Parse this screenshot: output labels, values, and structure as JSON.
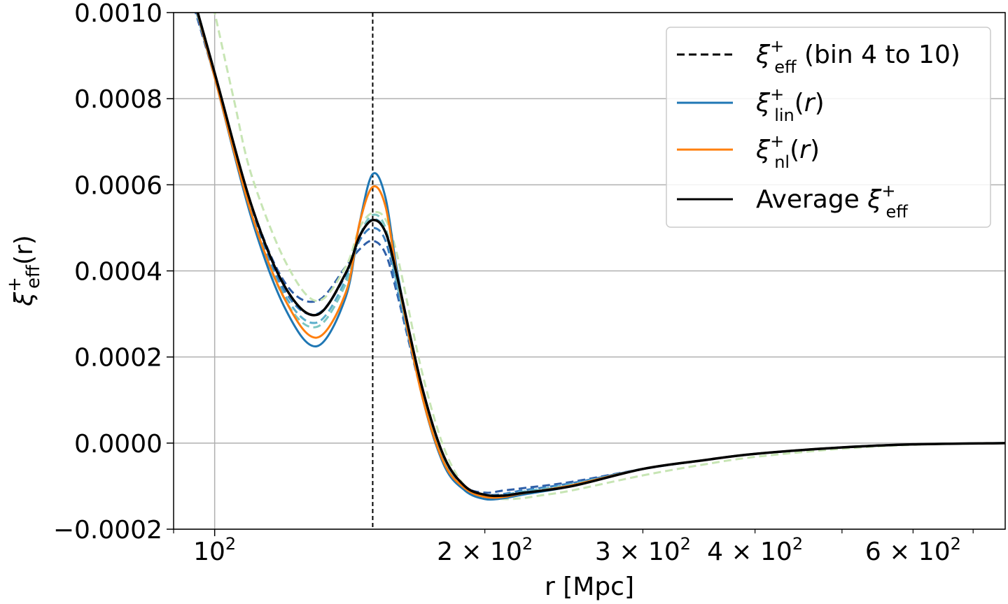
{
  "chart_data": {
    "type": "line",
    "xscale": "log",
    "xlim": [
      90,
      760
    ],
    "ylim": [
      -0.0002,
      0.001
    ],
    "xlabel": "r [Mpc]",
    "ylabel": {
      "base": "ξ",
      "sup": "+",
      "sub": "eff",
      "tail": "(r)"
    },
    "grid": true,
    "legend_position": "top-right",
    "vline": {
      "x": 150,
      "style": "dashed",
      "color": "#000000"
    },
    "x_ticks_major": [
      {
        "value": 100,
        "base": "10",
        "exp": "2"
      }
    ],
    "x_ticks_minor": [
      {
        "value": 200,
        "base": "2 × 10",
        "exp": "2"
      },
      {
        "value": 300,
        "base": "3 × 10",
        "exp": "2"
      },
      {
        "value": 400,
        "base": "4 × 10",
        "exp": "2"
      },
      {
        "value": 600,
        "base": "6 × 10",
        "exp": "2"
      }
    ],
    "y_ticks": [
      {
        "value": -0.0002,
        "label": "−0.0002"
      },
      {
        "value": 0.0,
        "label": "0.0000"
      },
      {
        "value": 0.0002,
        "label": "0.0002"
      },
      {
        "value": 0.0004,
        "label": "0.0004"
      },
      {
        "value": 0.0006,
        "label": "0.0006"
      },
      {
        "value": 0.0008,
        "label": "0.0008"
      },
      {
        "value": 0.001,
        "label": "0.0010"
      }
    ],
    "legend": [
      {
        "style": "dashed",
        "color": "#000000",
        "base": "ξ",
        "sup": "+",
        "sub": "eff",
        "tail": " (bin 4 to 10)"
      },
      {
        "style": "solid",
        "color": "#1f77b4",
        "base": "ξ",
        "sup": "+",
        "sub": "lin",
        "tail": "(r)"
      },
      {
        "style": "solid",
        "color": "#ff7f0e",
        "base": "ξ",
        "sup": "+",
        "sub": "nl",
        "tail": "(r)"
      },
      {
        "style": "solid",
        "color": "#000000",
        "base": "Average ξ",
        "sup": "+",
        "sub": "eff",
        "tail": ""
      }
    ],
    "series": [
      {
        "name": "lin",
        "kind": "main",
        "color": "#1f77b4",
        "dashed": false,
        "width": 3,
        "x": [
          94,
          100,
          110,
          120,
          130,
          140,
          145,
          150,
          155,
          160,
          170,
          180,
          190,
          200,
          210,
          220,
          250,
          300,
          350,
          400,
          500,
          600,
          760
        ],
        "y": [
          0.00106,
          0.00085,
          0.00052,
          0.00031,
          0.000225,
          0.00034,
          0.00051,
          0.000625,
          0.00057,
          0.00039,
          0.000115,
          -5e-05,
          -0.00011,
          -0.00013,
          -0.000128,
          -0.00012,
          -0.0001,
          -6e-05,
          -4e-05,
          -2.5e-05,
          -1e-05,
          -3e-06,
          0.0
        ]
      },
      {
        "name": "nl",
        "kind": "main",
        "color": "#ff7f0e",
        "dashed": false,
        "width": 3,
        "x": [
          94,
          100,
          110,
          120,
          130,
          140,
          145,
          150,
          155,
          160,
          170,
          180,
          190,
          200,
          210,
          220,
          250,
          300,
          350,
          400,
          500,
          600,
          760
        ],
        "y": [
          0.00106,
          0.00085,
          0.00053,
          0.00033,
          0.000245,
          0.00035,
          0.00051,
          0.000595,
          0.00055,
          0.00038,
          0.000115,
          -4.5e-05,
          -0.000105,
          -0.000125,
          -0.000125,
          -0.000117,
          -9.8e-05,
          -6e-05,
          -4e-05,
          -2.5e-05,
          -1e-05,
          -3e-06,
          0.0
        ]
      },
      {
        "name": "bin 4",
        "kind": "bin",
        "color": "#2f5fa8",
        "dashed": true,
        "width": 3,
        "x": [
          94,
          100,
          110,
          120,
          130,
          140,
          145,
          150,
          155,
          160,
          170,
          180,
          190,
          200,
          210,
          220,
          250,
          300,
          350,
          400,
          500,
          600,
          760
        ],
        "y": [
          0.00104,
          0.00085,
          0.00055,
          0.00037,
          0.00033,
          0.00041,
          0.00045,
          0.00047,
          0.00044,
          0.00034,
          0.00012,
          -3e-05,
          -0.0001,
          -0.000115,
          -0.00011,
          -0.000105,
          -9e-05,
          -6e-05,
          -4e-05,
          -2.5e-05,
          -1e-05,
          -3e-06,
          0.0
        ]
      },
      {
        "name": "bin 5",
        "kind": "bin",
        "color": "#3a7fbf",
        "dashed": true,
        "width": 3,
        "x": [
          94,
          100,
          110,
          120,
          130,
          140,
          145,
          150,
          155,
          160,
          170,
          180,
          190,
          200,
          210,
          220,
          250,
          300,
          350,
          400,
          500,
          600,
          760
        ],
        "y": [
          0.00105,
          0.00085,
          0.00054,
          0.00035,
          0.0003,
          0.00039,
          0.00047,
          0.0005,
          0.00047,
          0.00035,
          0.00012,
          -4e-05,
          -0.000105,
          -0.00012,
          -0.000118,
          -0.00011,
          -9.3e-05,
          -6e-05,
          -4e-05,
          -2.5e-05,
          -1e-05,
          -3e-06,
          0.0
        ]
      },
      {
        "name": "bin 6",
        "kind": "bin",
        "color": "#5aaecb",
        "dashed": true,
        "width": 3,
        "x": [
          94,
          100,
          110,
          120,
          130,
          140,
          145,
          150,
          155,
          160,
          170,
          180,
          190,
          200,
          210,
          220,
          250,
          300,
          350,
          400,
          500,
          600,
          760
        ],
        "y": [
          0.00105,
          0.00085,
          0.00053,
          0.00034,
          0.00028,
          0.00038,
          0.00048,
          0.00052,
          0.00049,
          0.00036,
          0.00012,
          -4e-05,
          -0.00011,
          -0.000125,
          -0.00012,
          -0.000113,
          -9.5e-05,
          -6e-05,
          -4e-05,
          -2.5e-05,
          -1e-05,
          -3e-06,
          0.0
        ]
      },
      {
        "name": "bin 7",
        "kind": "bin",
        "color": "#7cc6c2",
        "dashed": true,
        "width": 3,
        "x": [
          94,
          100,
          110,
          120,
          130,
          140,
          145,
          150,
          155,
          160,
          170,
          180,
          190,
          200,
          210,
          220,
          250,
          300,
          350,
          400,
          500,
          600,
          760
        ],
        "y": [
          0.00106,
          0.00086,
          0.00053,
          0.00033,
          0.00027,
          0.00037,
          0.00048,
          0.00053,
          0.0005,
          0.00037,
          0.00012,
          -4e-05,
          -0.00011,
          -0.000127,
          -0.000123,
          -0.000115,
          -9.7e-05,
          -6e-05,
          -4e-05,
          -2.5e-05,
          -1e-05,
          -3e-06,
          0.0
        ]
      },
      {
        "name": "bin 9",
        "kind": "bin",
        "color": "#c7e5b4",
        "dashed": true,
        "width": 3,
        "x": [
          97,
          100,
          105,
          110,
          120,
          130,
          140,
          145,
          150,
          155,
          160,
          170,
          180,
          190,
          200,
          210,
          220,
          230,
          250,
          300,
          350,
          400,
          500,
          600,
          760
        ],
        "y": [
          0.00112,
          0.001,
          0.0008,
          0.00062,
          0.00042,
          0.00033,
          0.00041,
          0.0005,
          0.000535,
          0.00052,
          0.00043,
          0.00017,
          -1e-05,
          -0.0001,
          -0.000125,
          -0.00013,
          -0.000128,
          -0.000122,
          -0.00011,
          -7.5e-05,
          -5e-05,
          -3.2e-05,
          -1.3e-05,
          -4e-06,
          0.0
        ]
      },
      {
        "name": "average",
        "kind": "main",
        "color": "#000000",
        "dashed": false,
        "width": 3.5,
        "x": [
          94,
          100,
          110,
          120,
          130,
          140,
          145,
          150,
          155,
          160,
          170,
          180,
          190,
          200,
          210,
          220,
          250,
          300,
          350,
          400,
          500,
          600,
          760
        ],
        "y": [
          0.00106,
          0.00086,
          0.00055,
          0.00036,
          0.000298,
          0.000395,
          0.00048,
          0.000518,
          0.00049,
          0.00038,
          0.000135,
          -3e-05,
          -0.0001,
          -0.00012,
          -0.000122,
          -0.000116,
          -0.0001,
          -6e-05,
          -4e-05,
          -2.5e-05,
          -1e-05,
          -3e-06,
          0.0
        ]
      }
    ]
  }
}
